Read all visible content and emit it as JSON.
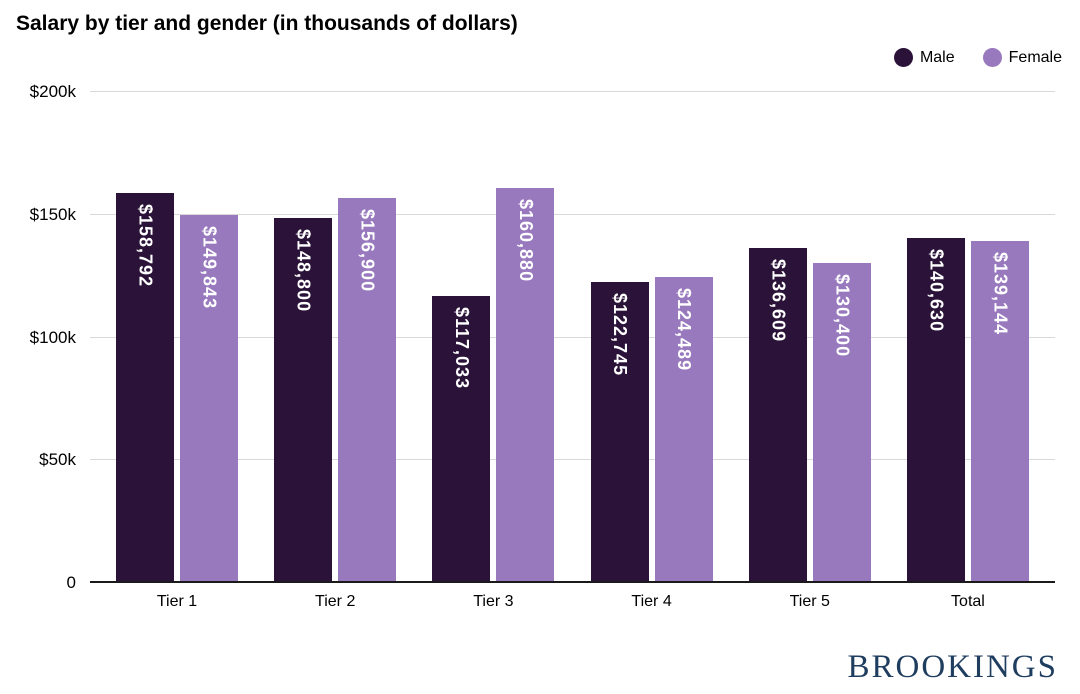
{
  "logo": "BROOKINGS",
  "colors": {
    "male": "#2a1238",
    "female": "#9879be",
    "grid": "#d9d9d9",
    "axis": "#1a1a1a",
    "logo": "#1f3e5f"
  },
  "chart_data": {
    "type": "bar",
    "title": "Salary by tier and gender (in thousands of dollars)",
    "categories": [
      "Tier 1",
      "Tier 2",
      "Tier 3",
      "Tier 4",
      "Tier 5",
      "Total"
    ],
    "series": [
      {
        "name": "Male",
        "color": "#2a1238",
        "values": [
          158792,
          148800,
          117033,
          122745,
          136609,
          140630
        ],
        "labels": [
          "$158,792",
          "$148,800",
          "$117,033",
          "$122,745",
          "$136,609",
          "$140,630"
        ]
      },
      {
        "name": "Female",
        "color": "#9879be",
        "values": [
          149843,
          156900,
          160880,
          124489,
          130400,
          139144
        ],
        "labels": [
          "$149,843",
          "$156,900",
          "$160,880",
          "$124,489",
          "$130,400",
          "$139,144"
        ]
      }
    ],
    "xlabel": "",
    "ylabel": "",
    "ylim": [
      0,
      200000
    ],
    "yticks": [
      {
        "value": 0,
        "label": "0"
      },
      {
        "value": 50000,
        "label": "$50k"
      },
      {
        "value": 100000,
        "label": "$100k"
      },
      {
        "value": 150000,
        "label": "$150k"
      },
      {
        "value": 200000,
        "label": "$200k"
      }
    ],
    "grid": true,
    "legend_position": "top-right"
  }
}
